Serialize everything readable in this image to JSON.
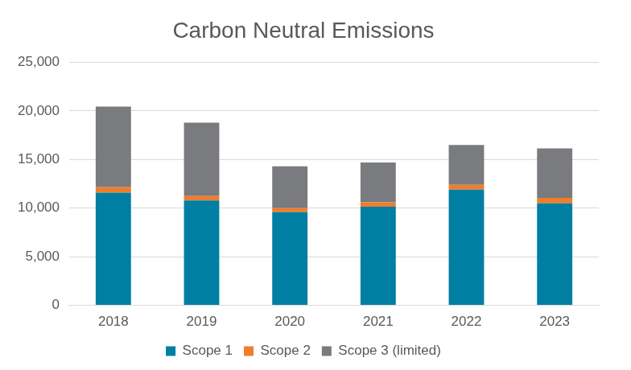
{
  "chart_data": {
    "type": "bar",
    "title": "Carbon Neutral Emissions",
    "categories": [
      "2018",
      "2019",
      "2020",
      "2021",
      "2022",
      "2023"
    ],
    "series": [
      {
        "name": "Scope 1",
        "color": "#007fa3",
        "values": [
          11600,
          10800,
          9600,
          10150,
          11900,
          10500
        ]
      },
      {
        "name": "Scope 2",
        "color": "#ef7d2d",
        "values": [
          550,
          450,
          400,
          450,
          500,
          550
        ]
      },
      {
        "name": "Scope 3 (limited)",
        "color": "#797b7f",
        "values": [
          8300,
          7550,
          4300,
          4100,
          4100,
          5100
        ]
      }
    ],
    "ylim": [
      0,
      25000
    ],
    "yticks": [
      0,
      {
        "value": 5000,
        "label": "5,000"
      },
      {
        "value": 10000,
        "label": "10,000"
      },
      {
        "value": 15000,
        "label": "15,000"
      },
      {
        "value": 20000,
        "label": "20,000"
      },
      {
        "value": 25000,
        "label": "25,000"
      }
    ],
    "stacked": true,
    "grid": true,
    "legend": "bottom"
  }
}
